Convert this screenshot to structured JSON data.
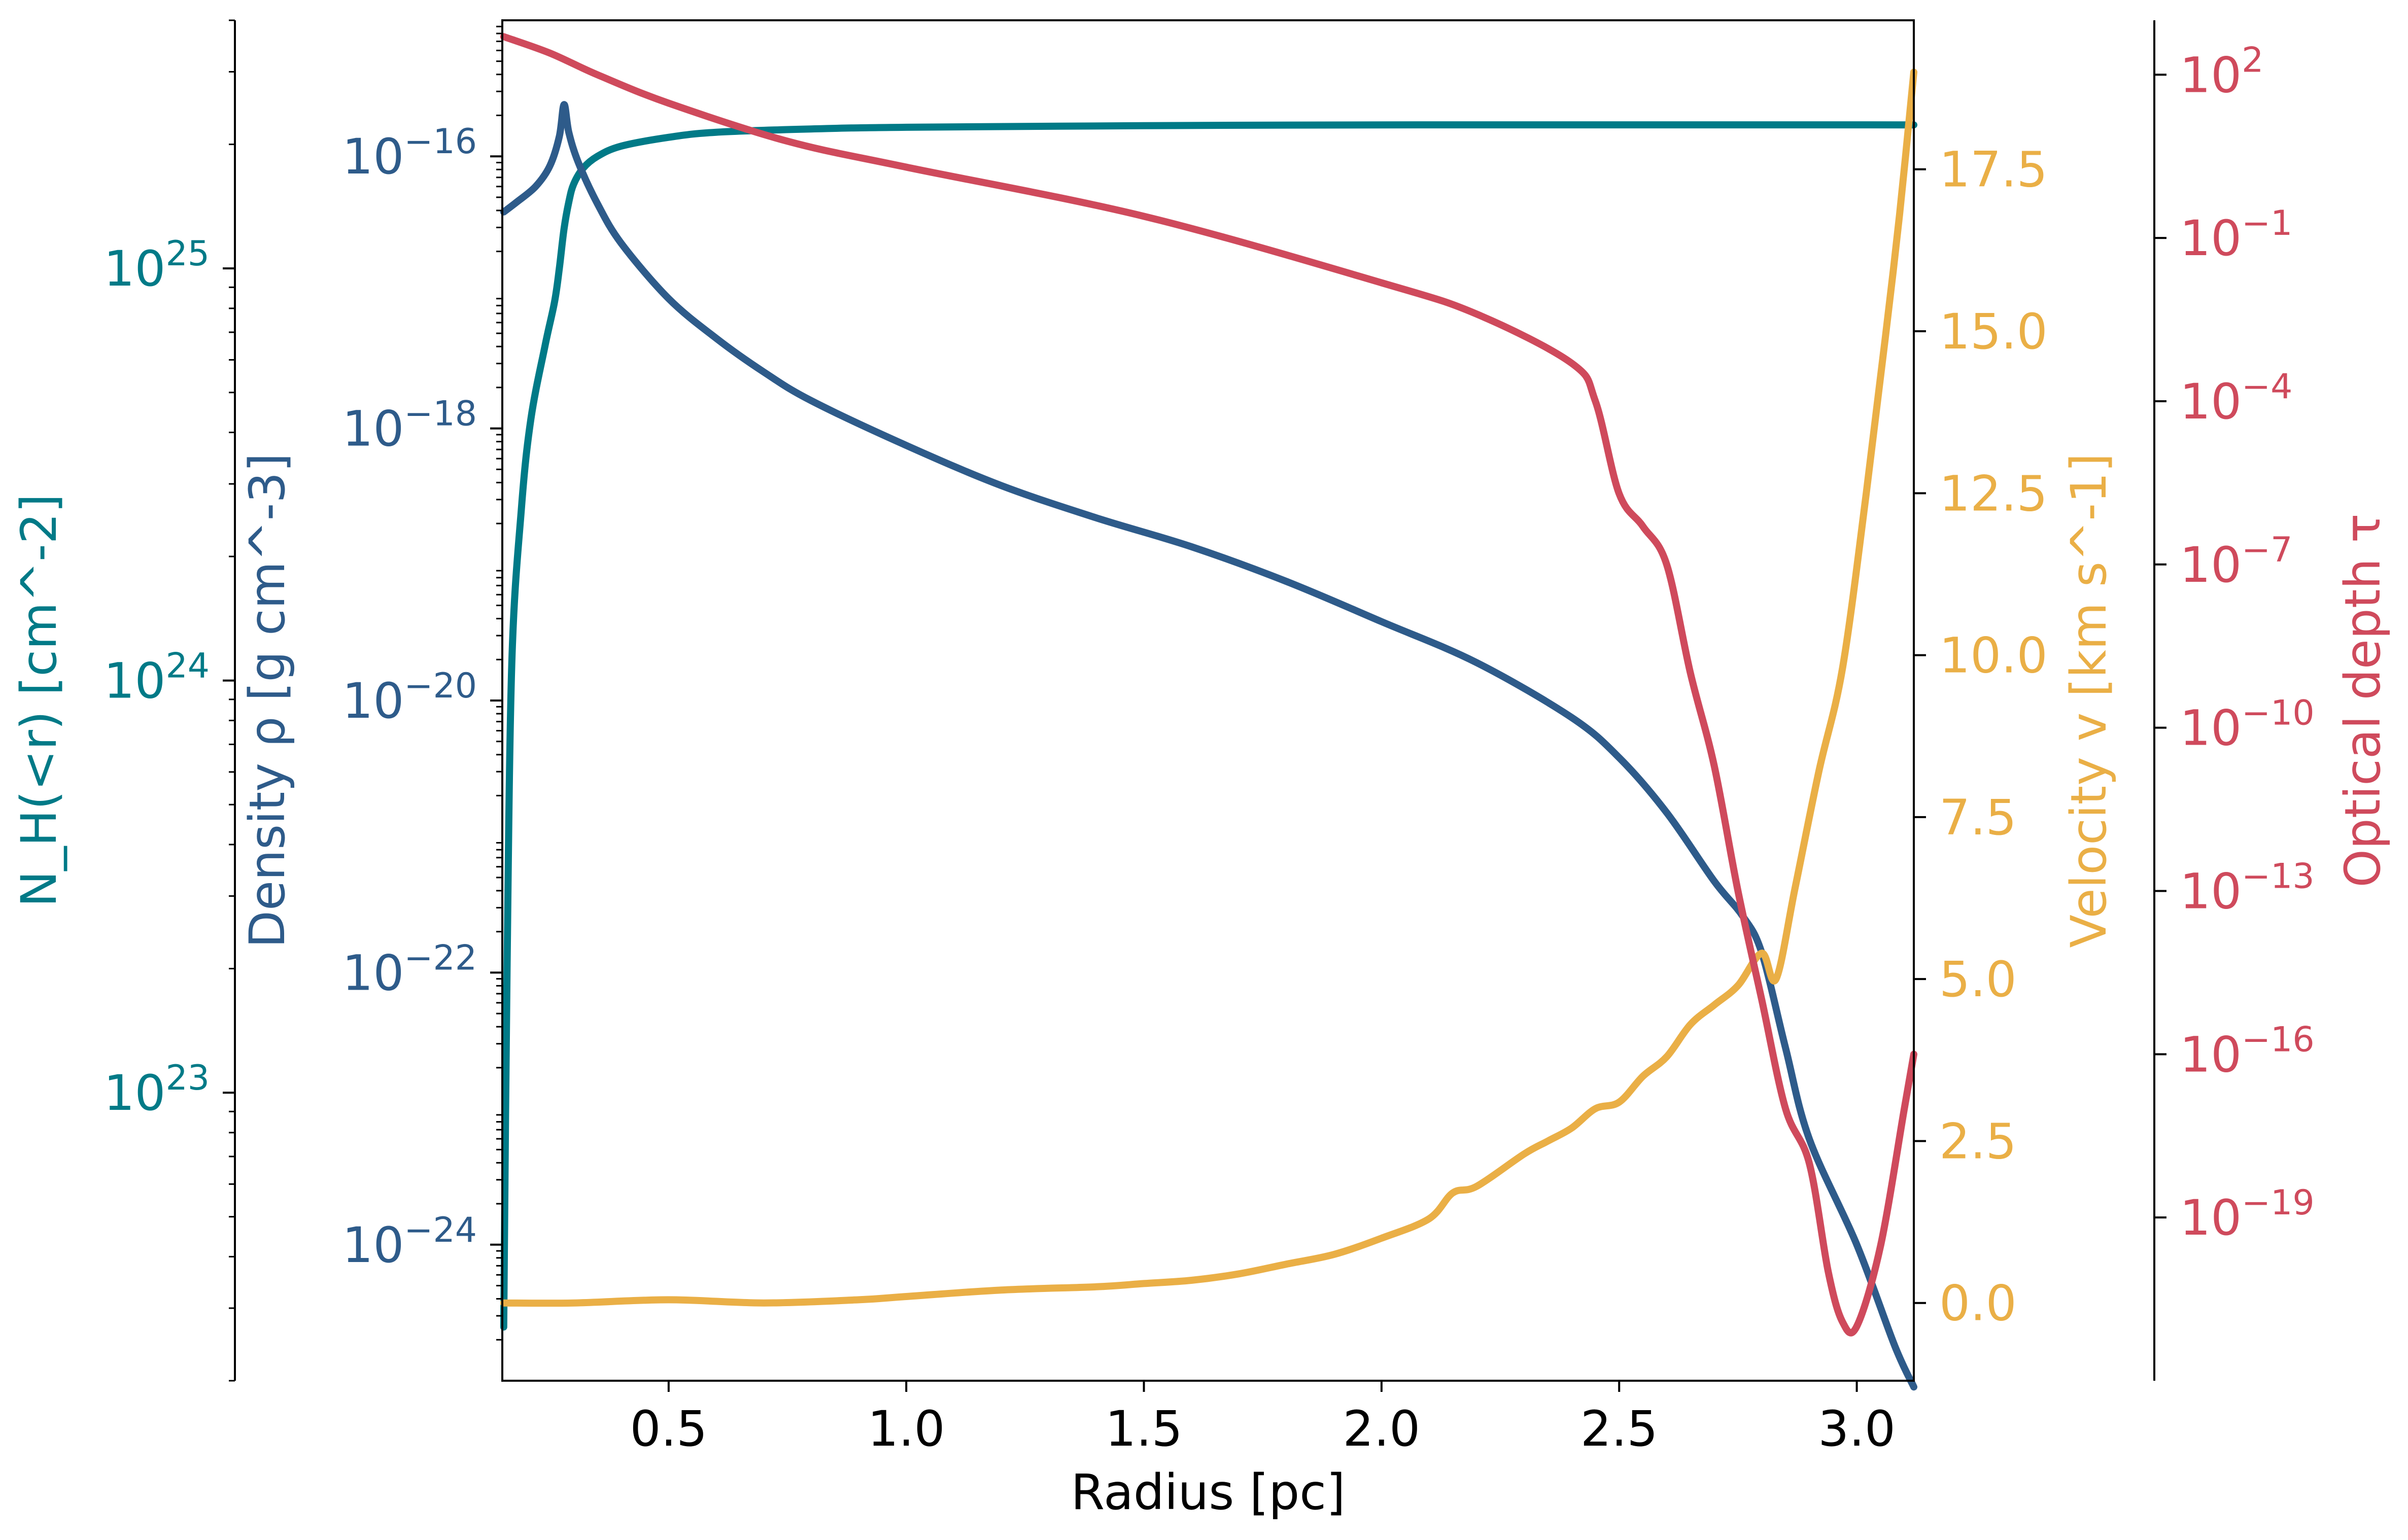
{
  "chart_data": {
    "type": "line",
    "xlabel": "Radius [pc]",
    "xlim": [
      0.15,
      3.12
    ],
    "xticks": [
      0.5,
      1.0,
      1.5,
      2.0,
      2.5,
      3.0
    ],
    "xtick_labels": [
      "0.5",
      "1.0",
      "1.5",
      "2.0",
      "2.5",
      "3.0"
    ],
    "grid": false,
    "legend": "none",
    "axes": {
      "nh": {
        "label": "N_H(<r) [cm^-2]",
        "scale": "log",
        "ylim": [
          2e+22,
          4e+25
        ],
        "ticks": [
          1e+23,
          1e+24,
          1e+25
        ],
        "tick_labels": [
          {
            "base": "10",
            "exp": "23"
          },
          {
            "base": "10",
            "exp": "24"
          },
          {
            "base": "10",
            "exp": "25"
          }
        ],
        "color": "#007a87",
        "position": "far-left"
      },
      "density": {
        "label": "Density ρ [g cm^-3]",
        "scale": "log",
        "ylim": [
          1e-25,
          1e-15
        ],
        "ticks": [
          1e-24,
          1e-22,
          1e-20,
          1e-18,
          1e-16
        ],
        "tick_labels": [
          {
            "base": "10",
            "exp": "−24"
          },
          {
            "base": "10",
            "exp": "−22"
          },
          {
            "base": "10",
            "exp": "−20"
          },
          {
            "base": "10",
            "exp": "−18"
          },
          {
            "base": "10",
            "exp": "−16"
          }
        ],
        "color": "#2e5b8a",
        "position": "left"
      },
      "velocity": {
        "label": "Velocity v [km s^-1]",
        "scale": "linear",
        "ylim": [
          -1.2,
          19.8
        ],
        "ticks": [
          0.0,
          2.5,
          5.0,
          7.5,
          10.0,
          12.5,
          15.0,
          17.5
        ],
        "tick_labels": [
          "0.0",
          "2.5",
          "5.0",
          "7.5",
          "10.0",
          "12.5",
          "15.0",
          "17.5"
        ],
        "color": "#eaaf46",
        "position": "right"
      },
      "tau": {
        "label": "Optical depth τ",
        "scale": "log",
        "ylim": [
          1e-22,
          1000.0
        ],
        "ticks": [
          1e-19,
          1e-16,
          1e-13,
          1e-10,
          1e-07,
          0.0001,
          0.1,
          100.0
        ],
        "tick_labels": [
          {
            "base": "10",
            "exp": "−19"
          },
          {
            "base": "10",
            "exp": "−16"
          },
          {
            "base": "10",
            "exp": "−13"
          },
          {
            "base": "10",
            "exp": "−10"
          },
          {
            "base": "10",
            "exp": "−7"
          },
          {
            "base": "10",
            "exp": "−4"
          },
          {
            "base": "10",
            "exp": "−1"
          },
          {
            "base": "10",
            "exp": "2"
          }
        ],
        "color": "#cf4a5c",
        "position": "far-right"
      }
    },
    "series": [
      {
        "axis": "nh",
        "color": "#007a87",
        "points": [
          [
            0.153,
            2.7e+22
          ],
          [
            0.16,
            2e+23
          ],
          [
            0.17,
            1.1e+24
          ],
          [
            0.19,
            2.6e+24
          ],
          [
            0.21,
            4.3e+24
          ],
          [
            0.24,
            6.5e+24
          ],
          [
            0.26,
            8.3e+24
          ],
          [
            0.27,
            1e+25
          ],
          [
            0.28,
            1.25e+25
          ],
          [
            0.29,
            1.45e+25
          ],
          [
            0.3,
            1.6e+25
          ],
          [
            0.32,
            1.75e+25
          ],
          [
            0.35,
            1.87e+25
          ],
          [
            0.4,
            1.98e+25
          ],
          [
            0.5,
            2.08e+25
          ],
          [
            0.6,
            2.14e+25
          ],
          [
            0.8,
            2.18e+25
          ],
          [
            1.0,
            2.2e+25
          ],
          [
            1.5,
            2.22e+25
          ],
          [
            2.0,
            2.23e+25
          ],
          [
            3.12,
            2.23e+25
          ]
        ]
      },
      {
        "axis": "density",
        "color": "#2e5b8a",
        "points": [
          [
            0.153,
            3.9e-17
          ],
          [
            0.18,
            4.6e-17
          ],
          [
            0.22,
            6e-17
          ],
          [
            0.25,
            8.5e-17
          ],
          [
            0.27,
            1.4e-16
          ],
          [
            0.28,
            2.4e-16
          ],
          [
            0.29,
            1.5e-16
          ],
          [
            0.31,
            9e-17
          ],
          [
            0.35,
            4.5e-17
          ],
          [
            0.4,
            2.3e-17
          ],
          [
            0.5,
            9e-18
          ],
          [
            0.6,
            4.6e-18
          ],
          [
            0.7,
            2.6e-18
          ],
          [
            0.8,
            1.6e-18
          ],
          [
            1.0,
            7.5e-19
          ],
          [
            1.2,
            3.8e-19
          ],
          [
            1.4,
            2.2e-19
          ],
          [
            1.6,
            1.35e-19
          ],
          [
            1.8,
            7.5e-20
          ],
          [
            2.0,
            3.8e-20
          ],
          [
            2.2,
            1.9e-20
          ],
          [
            2.4,
            7.5e-21
          ],
          [
            2.5,
            3.8e-21
          ],
          [
            2.6,
            1.5e-21
          ],
          [
            2.7,
            4.7e-22
          ],
          [
            2.76,
            2.6e-22
          ],
          [
            2.8,
            1.4e-22
          ],
          [
            2.85,
            2.8e-23
          ],
          [
            2.9,
            6e-24
          ],
          [
            3.0,
            1e-24
          ],
          [
            3.08,
            1.8e-25
          ],
          [
            3.12,
            9e-26
          ]
        ]
      },
      {
        "axis": "velocity",
        "color": "#eaaf46",
        "points": [
          [
            0.153,
            0.0
          ],
          [
            0.3,
            0.0
          ],
          [
            0.5,
            0.05
          ],
          [
            0.7,
            0.0
          ],
          [
            0.9,
            0.05
          ],
          [
            1.0,
            0.1
          ],
          [
            1.2,
            0.2
          ],
          [
            1.4,
            0.25
          ],
          [
            1.5,
            0.3
          ],
          [
            1.6,
            0.35
          ],
          [
            1.7,
            0.45
          ],
          [
            1.8,
            0.6
          ],
          [
            1.9,
            0.75
          ],
          [
            2.0,
            1.0
          ],
          [
            2.1,
            1.3
          ],
          [
            2.15,
            1.7
          ],
          [
            2.2,
            1.8
          ],
          [
            2.3,
            2.3
          ],
          [
            2.35,
            2.5
          ],
          [
            2.4,
            2.7
          ],
          [
            2.45,
            3.0
          ],
          [
            2.5,
            3.1
          ],
          [
            2.55,
            3.5
          ],
          [
            2.6,
            3.8
          ],
          [
            2.65,
            4.3
          ],
          [
            2.7,
            4.6
          ],
          [
            2.75,
            4.9
          ],
          [
            2.8,
            5.4
          ],
          [
            2.83,
            5.0
          ],
          [
            2.87,
            6.4
          ],
          [
            2.92,
            8.2
          ],
          [
            2.97,
            9.8
          ],
          [
            3.02,
            12.5
          ],
          [
            3.06,
            14.9
          ],
          [
            3.09,
            16.8
          ],
          [
            3.12,
            19.0
          ]
        ]
      },
      {
        "axis": "tau",
        "color": "#cf4a5c",
        "points": [
          [
            0.153,
            500.0
          ],
          [
            0.25,
            250.0
          ],
          [
            0.35,
            100.0
          ],
          [
            0.5,
            30.0
          ],
          [
            0.75,
            6.0
          ],
          [
            1.0,
            2.0
          ],
          [
            1.5,
            0.25
          ],
          [
            2.0,
            0.015
          ],
          [
            2.2,
            0.004
          ],
          [
            2.4,
            0.0005
          ],
          [
            2.45,
            0.0001
          ],
          [
            2.5,
            2e-06
          ],
          [
            2.55,
            5e-07
          ],
          [
            2.6,
            1e-07
          ],
          [
            2.65,
            1e-09
          ],
          [
            2.7,
            2e-11
          ],
          [
            2.75,
            1e-13
          ],
          [
            2.8,
            1e-15
          ],
          [
            2.85,
            1e-17
          ],
          [
            2.9,
            1e-18
          ],
          [
            2.94,
            1e-20
          ],
          [
            2.97,
            1.2e-21
          ],
          [
            3.0,
            1e-21
          ],
          [
            3.05,
            3e-20
          ],
          [
            3.1,
            1e-17
          ],
          [
            3.12,
            1e-16
          ]
        ]
      }
    ]
  }
}
